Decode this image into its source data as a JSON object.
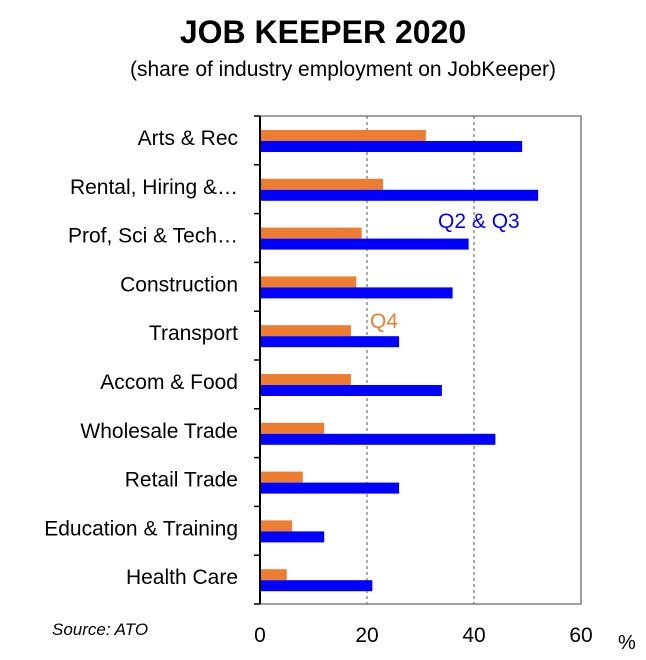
{
  "title": "JOB KEEPER 2020",
  "subtitle": "(share of industry employment on JobKeeper)",
  "source": "Source: ATO",
  "chart_data": {
    "type": "bar",
    "orientation": "horizontal",
    "categories": [
      "Arts & Rec",
      "Rental, Hiring &…",
      "Prof, Sci & Tech…",
      "Construction",
      "Transport",
      "Accom & Food",
      "Wholesale Trade",
      "Retail Trade",
      "Education & Training",
      "Health Care"
    ],
    "series": [
      {
        "name": "Q4",
        "color": "#ED7D31",
        "values": [
          31,
          23,
          19,
          18,
          17,
          17,
          12,
          8,
          6,
          5
        ]
      },
      {
        "name": "Q2 & Q3",
        "color": "#0000FF",
        "values": [
          49,
          52,
          39,
          36,
          26,
          34,
          44,
          26,
          12,
          21
        ]
      }
    ],
    "xlim": [
      0,
      60
    ],
    "xticks": [
      0,
      20,
      40,
      60
    ],
    "xunit": "%",
    "gridlines": [
      20,
      40
    ],
    "grid": "dashed vertical",
    "legend": "inline labels"
  }
}
